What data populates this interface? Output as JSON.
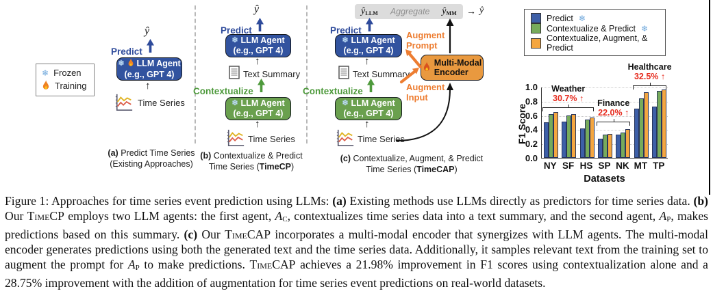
{
  "palette": {
    "llm_blue": "#32539f",
    "agent_green": "#6aa04e",
    "encoder_orange": "#e9993f",
    "augment_orange": "#ed7d31",
    "predict_blue": "#2e4b9b",
    "contextualize_green": "#4e9a3c",
    "annotation_red": "#e62b1e",
    "aggregate_gray": "#dcdcdc"
  },
  "icons": {
    "frozen": "❄",
    "arrow_up": "↑",
    "arrow_right": "→"
  },
  "legend_box": {
    "frozen": "Frozen",
    "training": "Training"
  },
  "panel_a": {
    "yhat": "ŷ",
    "predict_label": "Predict",
    "agent_line1": "LLM Agent",
    "agent_line2": "(e.g., GPT 4)",
    "time_series_label": "Time Series",
    "caption_tag": "(a)",
    "caption_line1": "Predict Time Series",
    "caption_line2": "(Existing Approaches)"
  },
  "panel_b": {
    "yhat": "ŷ",
    "predict_label": "Predict",
    "contextualize_label": "Contextualize",
    "predict_agent_line1": "LLM Agent",
    "predict_agent_line2": "(e.g., GPT 4)",
    "context_agent_line1": "LLM Agent",
    "context_agent_line2": "(e.g., GPT 4)",
    "text_summary_label": "Text Summary",
    "time_series_label": "Time Series",
    "caption_tag": "(b)",
    "caption_line1": "Contextualize & Predict",
    "caption_line2_pre": "Time Series (",
    "caption_line2_name": "TimeCP",
    "caption_line2_post": ")"
  },
  "panel_c": {
    "yhat_llm": "ŷ",
    "yhat_llm_sub": "LLM",
    "aggregate_label": "Aggregate",
    "yhat_mm": "ŷ",
    "yhat_mm_sub": "MM",
    "final_yhat": "ŷ",
    "predict_label": "Predict",
    "contextualize_label": "Contextualize",
    "predict_agent_line1": "LLM Agent",
    "predict_agent_line2": "(e.g., GPT 4)",
    "context_agent_line1": "LLM Agent",
    "context_agent_line2": "(e.g., GPT 4)",
    "encoder_line1": "Multi-Modal",
    "encoder_line2": "Encoder",
    "augment_prompt_line1": "Augment",
    "augment_prompt_line2": "Prompt",
    "augment_input_line1": "Augment",
    "augment_input_line2": "Input",
    "text_summary_label": "Text Summary",
    "time_series_label": "Time Series",
    "caption_tag": "(c)",
    "caption_line1": "Contextualize, Augment, & Predict",
    "caption_line2_pre": "Time Series (",
    "caption_line2_name": "TimeCAP",
    "caption_line2_post": ")"
  },
  "chart_data": {
    "type": "bar",
    "xlabel": "Datasets",
    "ylabel": "F1 Score",
    "ylim": [
      0,
      1.0
    ],
    "yticks": [
      0.0,
      0.2,
      0.4,
      0.6,
      0.8,
      1.0
    ],
    "grid": true,
    "legend_position": "top",
    "categories": [
      "NY",
      "SF",
      "HS",
      "SP",
      "NK",
      "MT",
      "TP"
    ],
    "series": [
      {
        "name": "Predict",
        "frozen": true,
        "color": "#3d5fa7",
        "values": [
          0.5,
          0.51,
          0.41,
          0.27,
          0.33,
          0.69,
          0.72
        ]
      },
      {
        "name": "Contextualize & Predict",
        "frozen": true,
        "color": "#77ab5b",
        "values": [
          0.62,
          0.6,
          0.54,
          0.33,
          0.36,
          0.84,
          0.94
        ]
      },
      {
        "name": "Contextualize, Augment, & Predict",
        "frozen": false,
        "color": "#f4a640",
        "values": [
          0.64,
          0.62,
          0.57,
          0.34,
          0.4,
          0.92,
          0.96
        ]
      }
    ],
    "annotations": [
      {
        "label": "Weather",
        "pct": "30.7% ↑",
        "from": 0,
        "to": 2,
        "y": 0.72
      },
      {
        "label": "Finance",
        "pct": "22.0% ↑",
        "from": 3,
        "to": 4,
        "y": 0.52
      },
      {
        "label": "Healthcare",
        "pct": "32.5% ↑",
        "from": 5,
        "to": 6,
        "y": 1.03
      }
    ]
  },
  "caption": {
    "segments": [
      {
        "t": "Figure 1: Approaches for time series event prediction using LLMs: "
      },
      {
        "t": "(a)",
        "b": true
      },
      {
        "t": " Existing methods use LLMs directly as predictors for time series data. "
      },
      {
        "t": "(b)",
        "b": true
      },
      {
        "t": " Our "
      },
      {
        "t": "TimeCP",
        "sc": true
      },
      {
        "t": " employs two LLM agents: the first agent, "
      },
      {
        "t": "A",
        "m": true,
        "sub": "C"
      },
      {
        "t": ", contextualizes time series data into a text summary, and the second agent, "
      },
      {
        "t": "A",
        "m": true,
        "sub": "P"
      },
      {
        "t": ", makes predictions based on this summary. "
      },
      {
        "t": "(c)",
        "b": true
      },
      {
        "t": " Our "
      },
      {
        "t": "TimeCAP",
        "sc": true
      },
      {
        "t": " incorporates a multi-modal encoder that synergizes with LLM agents. The multi-modal encoder generates predictions using both the generated text and the time series data. Additionally, it samples relevant text from the training set to augment the prompt for "
      },
      {
        "t": "A",
        "m": true,
        "sub": "P"
      },
      {
        "t": " to make predictions. "
      },
      {
        "t": "TimeCAP",
        "sc": true
      },
      {
        "t": " achieves a 21.98% improvement in F1 scores using contextualization alone and a 28.75% improvement with the addition of augmentation for time series event predictions on real-world datasets."
      }
    ]
  }
}
